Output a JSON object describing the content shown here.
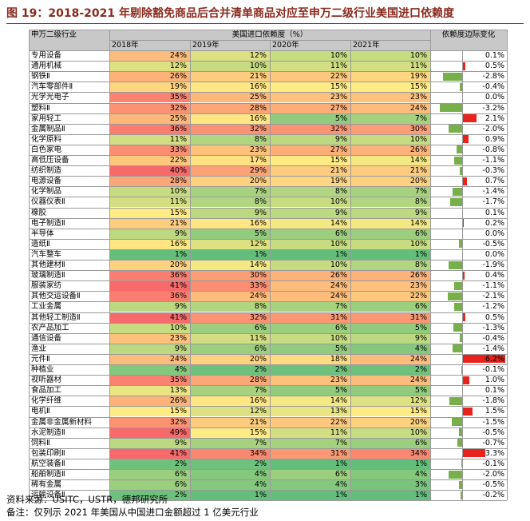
{
  "title": "图 19：2018-2021 年剔除豁免商品后合并清单商品对应至申万二级行业美国进口依赖度",
  "header": {
    "industry": "申万二级行业",
    "group": "美国进口依赖度（%）",
    "change": "依赖度边际变化",
    "years": [
      "2018年",
      "2019年",
      "2020年",
      "2021年"
    ]
  },
  "footer": {
    "source": "资料来源：USITC，USTR，德邦研究所",
    "note": "备注：仅列示 2021 年美国从中国进口金额超过 1 亿美元行业"
  },
  "colors": {
    "header_bg": "#c8c8c8",
    "positive": "#e8231d",
    "negative": "#77b04a",
    "scale_low": "#63be7b",
    "scale_mid": "#ffeb84",
    "scale_high": "#f8696b",
    "title": "#8a2a1e"
  },
  "chart_data": {
    "type": "table",
    "title": "图 19：2018-2021 年剔除豁免商品后合并清单商品对应至申万二级行业美国进口依赖度",
    "columns": [
      "申万二级行业",
      "2018年",
      "2019年",
      "2020年",
      "2021年",
      "依赖度边际变化"
    ],
    "unit": "%",
    "rows": [
      {
        "industry": "专用设备",
        "values": [
          24,
          12,
          10,
          10
        ],
        "change": 0.1
      },
      {
        "industry": "通用机械",
        "values": [
          12,
          10,
          11,
          11
        ],
        "change": 0.5
      },
      {
        "industry": "钢铁Ⅱ",
        "values": [
          26,
          21,
          22,
          19
        ],
        "change": -2.8
      },
      {
        "industry": "汽车零部件Ⅱ",
        "values": [
          19,
          16,
          15,
          15
        ],
        "change": -0.4
      },
      {
        "industry": "光学光电子",
        "values": [
          35,
          25,
          23,
          23
        ],
        "change": 0.0
      },
      {
        "industry": "塑料Ⅱ",
        "values": [
          32,
          28,
          27,
          24
        ],
        "change": -3.2
      },
      {
        "industry": "家用轻工",
        "values": [
          25,
          16,
          5,
          7
        ],
        "change": 2.1
      },
      {
        "industry": "金属制品Ⅱ",
        "values": [
          36,
          32,
          32,
          30
        ],
        "change": -2.0
      },
      {
        "industry": "化学原料",
        "values": [
          11,
          8,
          9,
          10
        ],
        "change": 0.9
      },
      {
        "industry": "白色家电",
        "values": [
          33,
          23,
          27,
          26
        ],
        "change": -0.8
      },
      {
        "industry": "高低压设备",
        "values": [
          22,
          17,
          15,
          14
        ],
        "change": -1.1
      },
      {
        "industry": "纺织制造",
        "values": [
          40,
          29,
          21,
          21
        ],
        "change": -0.3
      },
      {
        "industry": "电源设备",
        "values": [
          28,
          20,
          19,
          20
        ],
        "change": 0.7
      },
      {
        "industry": "化学制品",
        "values": [
          10,
          7,
          8,
          7
        ],
        "change": -1.4
      },
      {
        "industry": "仪器仪表Ⅱ",
        "values": [
          11,
          8,
          10,
          8
        ],
        "change": -1.7
      },
      {
        "industry": "橡胶",
        "values": [
          15,
          9,
          9,
          9
        ],
        "change": 0.1
      },
      {
        "industry": "电子制造Ⅱ",
        "values": [
          21,
          16,
          14,
          14
        ],
        "change": 0.2
      },
      {
        "industry": "半导体",
        "values": [
          9,
          5,
          6,
          6
        ],
        "change": 0.0
      },
      {
        "industry": "造纸Ⅱ",
        "values": [
          16,
          12,
          10,
          10
        ],
        "change": -0.5
      },
      {
        "industry": "汽车整车",
        "values": [
          1,
          1,
          1,
          1
        ],
        "change": 0.0
      },
      {
        "industry": "其他建材Ⅱ",
        "values": [
          20,
          14,
          10,
          8
        ],
        "change": -1.9
      },
      {
        "industry": "玻璃制造Ⅱ",
        "values": [
          36,
          30,
          26,
          26
        ],
        "change": 0.4
      },
      {
        "industry": "服装家纺",
        "values": [
          41,
          33,
          24,
          23
        ],
        "change": -1.1
      },
      {
        "industry": "其他交运设备Ⅱ",
        "values": [
          36,
          24,
          24,
          22
        ],
        "change": -2.1
      },
      {
        "industry": "工业金属",
        "values": [
          9,
          8,
          7,
          6
        ],
        "change": -1.2
      },
      {
        "industry": "其他轻工制造Ⅱ",
        "values": [
          41,
          32,
          31,
          31
        ],
        "change": 0.5
      },
      {
        "industry": "农产品加工",
        "values": [
          10,
          6,
          6,
          5
        ],
        "change": -1.3
      },
      {
        "industry": "通信设备",
        "values": [
          23,
          11,
          10,
          9
        ],
        "change": -0.4
      },
      {
        "industry": "渔业",
        "values": [
          9,
          6,
          5,
          4
        ],
        "change": -1.4
      },
      {
        "industry": "元件Ⅱ",
        "values": [
          24,
          20,
          18,
          24
        ],
        "change": 6.2
      },
      {
        "industry": "种植业",
        "values": [
          4,
          2,
          2,
          2
        ],
        "change": -0.1
      },
      {
        "industry": "视听器材",
        "values": [
          35,
          28,
          23,
          24
        ],
        "change": 1.0
      },
      {
        "industry": "食品加工",
        "values": [
          13,
          7,
          5,
          5
        ],
        "change": 0.1
      },
      {
        "industry": "化学纤维",
        "values": [
          26,
          16,
          14,
          12
        ],
        "change": -1.8
      },
      {
        "industry": "电机Ⅱ",
        "values": [
          15,
          12,
          13,
          15
        ],
        "change": 1.5
      },
      {
        "industry": "金属非金属新材料",
        "values": [
          32,
          21,
          22,
          20
        ],
        "change": -1.5
      },
      {
        "industry": "水泥制造Ⅱ",
        "values": [
          49,
          15,
          11,
          10
        ],
        "change": -0.5
      },
      {
        "industry": "饲料Ⅱ",
        "values": [
          9,
          7,
          7,
          6
        ],
        "change": -0.7
      },
      {
        "industry": "包装印刷Ⅱ",
        "values": [
          41,
          34,
          31,
          34
        ],
        "change": 3.3
      },
      {
        "industry": "航空装备Ⅱ",
        "values": [
          2,
          2,
          1,
          1
        ],
        "change": -0.1
      },
      {
        "industry": "船舶制造Ⅱ",
        "values": [
          6,
          4,
          6,
          4
        ],
        "change": -2.0
      },
      {
        "industry": "稀有金属",
        "values": [
          6,
          4,
          4,
          3
        ],
        "change": -0.5
      },
      {
        "industry": "运输设备Ⅱ",
        "values": [
          2,
          1,
          1,
          1
        ],
        "change": -0.2
      }
    ]
  }
}
